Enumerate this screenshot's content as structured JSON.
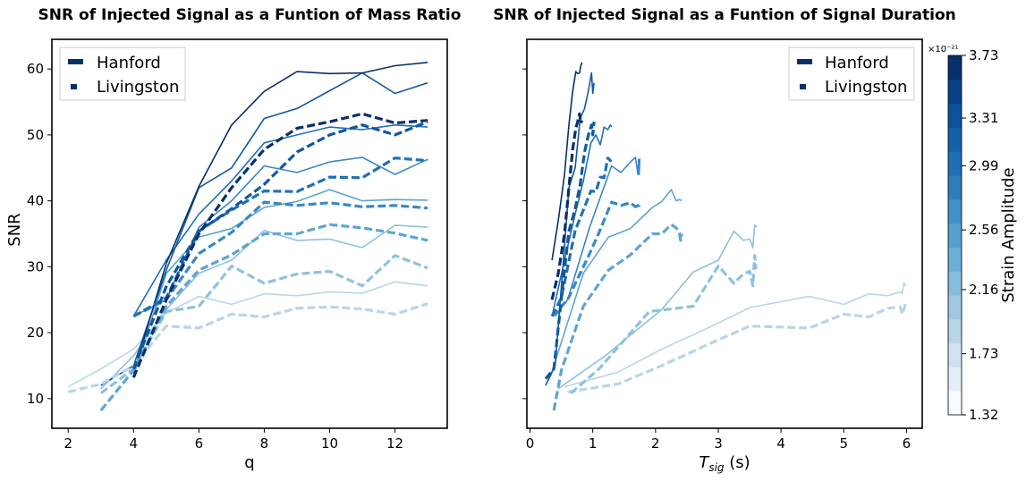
{
  "chart_data": [
    {
      "type": "line",
      "title": "SNR of Injected Signal as a Funtion of Mass Ratio",
      "xlabel": "q",
      "ylabel": "SNR",
      "xlim": [
        1.5,
        13.6
      ],
      "ylim": [
        5.5,
        64.5
      ],
      "xticks": [
        2,
        4,
        6,
        8,
        10,
        12
      ],
      "yticks": [
        10,
        20,
        30,
        40,
        50,
        60
      ],
      "grid": false,
      "legend": {
        "position": "top-left",
        "entries": [
          {
            "label": "Hanford",
            "style": "solid"
          },
          {
            "label": "Livingston",
            "style": "dashed"
          }
        ]
      },
      "series": [
        {
          "detector": "Hanford",
          "amplitude_level": 0,
          "color": "#b8d5ea",
          "x": [
            2,
            3,
            4,
            5,
            6,
            7,
            8,
            9,
            10,
            11,
            12,
            13
          ],
          "y": [
            11.8,
            14.5,
            17.5,
            23.0,
            25.5,
            24.3,
            25.9,
            25.6,
            26.2,
            26.0,
            27.7,
            27.1
          ]
        },
        {
          "detector": "Hanford",
          "amplitude_level": 1,
          "color": "#8fc1de",
          "x": [
            3,
            4,
            5,
            6,
            7,
            8,
            9,
            10,
            11,
            12,
            13
          ],
          "y": [
            11.5,
            16.5,
            23.5,
            29.0,
            31.0,
            35.5,
            34.0,
            34.2,
            32.9,
            36.3,
            36.0
          ]
        },
        {
          "detector": "Hanford",
          "amplitude_level": 2,
          "color": "#5da5d3",
          "x": [
            4,
            5,
            6,
            7,
            8,
            9,
            10,
            11,
            12,
            13
          ],
          "y": [
            13.5,
            29.0,
            34.5,
            35.8,
            39.0,
            39.9,
            41.7,
            40.0,
            40.2,
            40.1
          ]
        },
        {
          "detector": "Hanford",
          "amplitude_level": 3,
          "color": "#3a88c3",
          "x": [
            4,
            5,
            6,
            7,
            8,
            9,
            10,
            11,
            12,
            13
          ],
          "y": [
            22.5,
            25.0,
            36.0,
            40.0,
            45.3,
            44.3,
            45.9,
            46.6,
            44.0,
            46.3
          ]
        },
        {
          "detector": "Hanford",
          "amplitude_level": 4,
          "color": "#2170b4",
          "x": [
            4,
            5,
            6,
            7,
            8,
            9,
            10,
            11,
            12,
            13
          ],
          "y": [
            22.5,
            31.0,
            38.0,
            43.0,
            48.8,
            50.0,
            51.2,
            50.8,
            51.5,
            51.2
          ]
        },
        {
          "detector": "Hanford",
          "amplitude_level": 5,
          "color": "#1158a0",
          "x": [
            3,
            4,
            5,
            6,
            7,
            8,
            9,
            10,
            11,
            12,
            13
          ],
          "y": [
            12.0,
            15.0,
            29.5,
            42.0,
            45.0,
            52.5,
            54.0,
            56.7,
            59.4,
            56.3,
            57.9
          ]
        },
        {
          "detector": "Hanford",
          "amplitude_level": 6,
          "color": "#08306b",
          "x": [
            4,
            5,
            6,
            7,
            8,
            9,
            10,
            11,
            12,
            13
          ],
          "y": [
            13.8,
            30.5,
            42.2,
            51.5,
            56.6,
            59.6,
            59.3,
            59.4,
            60.5,
            61.0
          ]
        },
        {
          "detector": "Livingston",
          "amplitude_level": 0,
          "color": "#b8d5ea",
          "x": [
            2,
            3,
            4,
            5,
            6,
            7,
            8,
            9,
            10,
            11,
            12,
            13
          ],
          "y": [
            11.0,
            12.2,
            15.0,
            21.0,
            20.7,
            22.8,
            22.4,
            23.7,
            23.9,
            23.6,
            22.8,
            24.4
          ]
        },
        {
          "detector": "Livingston",
          "amplitude_level": 1,
          "color": "#8fc1de",
          "x": [
            3,
            4,
            5,
            6,
            7,
            8,
            9,
            10,
            11,
            12,
            13
          ],
          "y": [
            10.8,
            14.5,
            23.2,
            24.0,
            30.1,
            27.5,
            28.9,
            29.3,
            27.1,
            31.7,
            29.8
          ]
        },
        {
          "detector": "Livingston",
          "amplitude_level": 2,
          "color": "#5da5d3",
          "x": [
            3,
            4,
            5,
            6,
            7,
            8,
            9,
            10,
            11,
            12,
            13
          ],
          "y": [
            8.2,
            14.3,
            24.0,
            29.5,
            31.8,
            35.0,
            35.0,
            36.4,
            35.9,
            35.1,
            34.0
          ]
        },
        {
          "detector": "Livingston",
          "amplitude_level": 3,
          "color": "#3a88c3",
          "x": [
            4,
            5,
            6,
            7,
            8,
            9,
            10,
            11,
            12,
            13
          ],
          "y": [
            22.5,
            25.0,
            32.0,
            35.2,
            39.8,
            39.3,
            39.7,
            39.1,
            39.3,
            38.9
          ]
        },
        {
          "detector": "Livingston",
          "amplitude_level": 4,
          "color": "#2170b4",
          "x": [
            4,
            5,
            6,
            7,
            8,
            9,
            10,
            11,
            12,
            13
          ],
          "y": [
            22.5,
            25.3,
            35.5,
            38.6,
            41.5,
            41.4,
            43.6,
            43.5,
            46.5,
            46.1
          ]
        },
        {
          "detector": "Livingston",
          "amplitude_level": 5,
          "color": "#1158a0",
          "x": [
            4,
            5,
            6,
            7,
            8,
            9,
            10,
            11,
            12,
            13
          ],
          "y": [
            14.5,
            27.0,
            35.4,
            38.8,
            42.5,
            47.4,
            50.0,
            51.5,
            50.0,
            52.0
          ]
        },
        {
          "detector": "Livingston",
          "amplitude_level": 6,
          "color": "#08306b",
          "x": [
            4,
            5,
            6,
            7,
            8,
            9,
            10,
            11,
            12,
            13
          ],
          "y": [
            13.2,
            25.0,
            35.0,
            42.0,
            47.8,
            51.0,
            52.0,
            53.2,
            51.8,
            52.2
          ]
        }
      ]
    },
    {
      "type": "line",
      "title": "SNR of Injected Signal as a Funtion of Signal Duration",
      "xlabel_main": "T",
      "xlabel_sub": "sig",
      "xlabel_unit": " (s)",
      "ylabel": "",
      "xlim": [
        -0.05,
        6.25
      ],
      "ylim": [
        5.5,
        64.5
      ],
      "xticks": [
        0,
        1,
        2,
        3,
        4,
        5,
        6
      ],
      "yticks": [
        10,
        20,
        30,
        40,
        50,
        60
      ],
      "shared_y": true,
      "grid": false,
      "legend": {
        "position": "top-right",
        "entries": [
          {
            "label": "Hanford",
            "style": "solid"
          },
          {
            "label": "Livingston",
            "style": "dashed"
          }
        ]
      },
      "series": [
        {
          "detector": "Hanford",
          "amplitude_level": 0,
          "color": "#b8d5ea",
          "x": [
            0.55,
            1.4,
            2.1,
            2.9,
            3.5,
            4.45,
            5.0,
            5.4,
            5.7,
            5.9,
            5.93,
            5.96,
            5.98
          ],
          "y": [
            11.8,
            14.0,
            17.5,
            21.0,
            23.8,
            25.5,
            24.3,
            25.9,
            25.6,
            26.2,
            25.9,
            27.6,
            27.1
          ]
        },
        {
          "detector": "Hanford",
          "amplitude_level": 1,
          "color": "#8fc1de",
          "x": [
            0.45,
            1.2,
            2.1,
            2.6,
            3.0,
            3.25,
            3.4,
            3.5,
            3.55,
            3.58,
            3.6,
            3.6
          ],
          "y": [
            11.5,
            16.5,
            23.5,
            29.2,
            31.0,
            35.4,
            34.0,
            34.2,
            32.9,
            36.3,
            36.2,
            36.0
          ]
        },
        {
          "detector": "Hanford",
          "amplitude_level": 2,
          "color": "#5da5d3",
          "x": [
            0.33,
            0.85,
            1.25,
            1.6,
            1.95,
            2.1,
            2.25,
            2.33,
            2.38,
            2.4,
            2.42
          ],
          "y": [
            13.5,
            29.0,
            34.5,
            35.8,
            39.0,
            39.9,
            41.7,
            40.0,
            40.2,
            40.1,
            40.1
          ]
        },
        {
          "detector": "Hanford",
          "amplitude_level": 3,
          "color": "#3a88c3",
          "x": [
            0.4,
            0.6,
            0.95,
            1.1,
            1.3,
            1.45,
            1.6,
            1.68,
            1.72,
            1.73,
            1.74,
            1.75
          ],
          "y": [
            22.5,
            25.0,
            36.0,
            40.0,
            45.3,
            44.3,
            45.9,
            46.6,
            44.0,
            46.3,
            44.0,
            46.4
          ]
        },
        {
          "detector": "Hanford",
          "amplitude_level": 4,
          "color": "#2170b4",
          "x": [
            0.35,
            0.55,
            0.72,
            0.85,
            0.97,
            1.05,
            1.12,
            1.18,
            1.24,
            1.28,
            1.3
          ],
          "y": [
            22.5,
            31.0,
            38.0,
            43.0,
            48.8,
            50.0,
            48.5,
            51.2,
            50.8,
            51.5,
            51.2
          ]
        },
        {
          "detector": "Hanford",
          "amplitude_level": 5,
          "color": "#1158a0",
          "x": [
            0.25,
            0.4,
            0.52,
            0.62,
            0.72,
            0.8,
            0.87,
            0.93,
            0.98,
            1.0,
            1.02
          ],
          "y": [
            12.0,
            15.0,
            29.5,
            42.0,
            45.0,
            52.5,
            54.0,
            56.7,
            59.4,
            56.3,
            57.9
          ]
        },
        {
          "detector": "Hanford",
          "amplitude_level": 6,
          "color": "#08306b",
          "x": [
            0.35,
            0.45,
            0.55,
            0.62,
            0.68,
            0.73,
            0.76,
            0.79,
            0.81,
            0.83
          ],
          "y": [
            31.0,
            37.0,
            44.0,
            51.5,
            56.6,
            59.6,
            59.3,
            59.4,
            60.5,
            61.0
          ]
        },
        {
          "detector": "Livingston",
          "amplitude_level": 0,
          "color": "#b8d5ea",
          "x": [
            0.6,
            1.4,
            2.1,
            2.9,
            3.5,
            4.45,
            5.0,
            5.4,
            5.7,
            5.9,
            5.93,
            5.96,
            5.98
          ],
          "y": [
            11.0,
            12.2,
            15.0,
            18.5,
            21.0,
            20.7,
            22.8,
            22.4,
            23.7,
            23.9,
            22.8,
            23.6,
            24.4
          ]
        },
        {
          "detector": "Livingston",
          "amplitude_level": 1,
          "color": "#8fc1de",
          "x": [
            0.65,
            1.1,
            1.9,
            2.6,
            3.0,
            3.25,
            3.4,
            3.5,
            3.55,
            3.58,
            3.6,
            3.6
          ],
          "y": [
            10.8,
            14.5,
            23.2,
            24.0,
            30.1,
            27.5,
            28.9,
            29.3,
            27.1,
            31.7,
            29.8,
            30.0
          ]
        },
        {
          "detector": "Livingston",
          "amplitude_level": 2,
          "color": "#5da5d3",
          "x": [
            0.38,
            0.5,
            0.85,
            1.25,
            1.6,
            1.95,
            2.1,
            2.25,
            2.33,
            2.38,
            2.4,
            2.42
          ],
          "y": [
            8.2,
            14.3,
            24.0,
            29.5,
            31.8,
            35.0,
            35.0,
            36.4,
            35.9,
            35.1,
            34.0,
            35.0
          ]
        },
        {
          "detector": "Livingston",
          "amplitude_level": 3,
          "color": "#3a88c3",
          "x": [
            0.35,
            0.6,
            0.95,
            1.1,
            1.3,
            1.45,
            1.6,
            1.68,
            1.72,
            1.73,
            1.74
          ],
          "y": [
            22.5,
            25.0,
            32.0,
            35.2,
            39.8,
            39.3,
            39.7,
            39.1,
            39.3,
            38.9,
            39.3
          ]
        },
        {
          "detector": "Livingston",
          "amplitude_level": 4,
          "color": "#2170b4",
          "x": [
            0.35,
            0.5,
            0.72,
            0.85,
            0.97,
            1.05,
            1.12,
            1.18,
            1.24,
            1.28,
            1.3
          ],
          "y": [
            22.5,
            25.3,
            35.5,
            38.6,
            41.5,
            41.4,
            43.6,
            43.5,
            46.5,
            46.1,
            46.2
          ]
        },
        {
          "detector": "Livingston",
          "amplitude_level": 5,
          "color": "#1158a0",
          "x": [
            0.25,
            0.38,
            0.52,
            0.62,
            0.72,
            0.8,
            0.87,
            0.93,
            0.98,
            1.0,
            1.02
          ],
          "y": [
            13.0,
            14.5,
            27.0,
            35.4,
            38.8,
            42.5,
            47.4,
            50.0,
            51.5,
            50.0,
            52.0
          ]
        },
        {
          "detector": "Livingston",
          "amplitude_level": 6,
          "color": "#08306b",
          "x": [
            0.35,
            0.45,
            0.55,
            0.62,
            0.68,
            0.73,
            0.76,
            0.79,
            0.81,
            0.83
          ],
          "y": [
            25.0,
            29.0,
            35.0,
            42.0,
            47.8,
            51.0,
            52.0,
            53.2,
            51.8,
            52.2
          ]
        }
      ]
    }
  ],
  "colorbar": {
    "label": "Strain Amplitude",
    "scale_label": "×10⁻²¹",
    "min": 1.32,
    "max": 3.73,
    "tick_values": [
      1.32,
      1.73,
      2.16,
      2.56,
      2.99,
      3.31,
      3.73
    ],
    "tick_labels": [
      "1.32",
      "1.73",
      "2.16",
      "2.56",
      "2.99",
      "3.31",
      "3.73"
    ],
    "colors": [
      "#f7fbff",
      "#e3eef9",
      "#d0e1f2",
      "#b8d5ea",
      "#a0c8e3",
      "#86bcdc",
      "#6daed5",
      "#57a0ce",
      "#4191c6",
      "#2f7ebc",
      "#1f6fb3",
      "#1561a9",
      "#0b529a",
      "#084186",
      "#08306b"
    ]
  }
}
